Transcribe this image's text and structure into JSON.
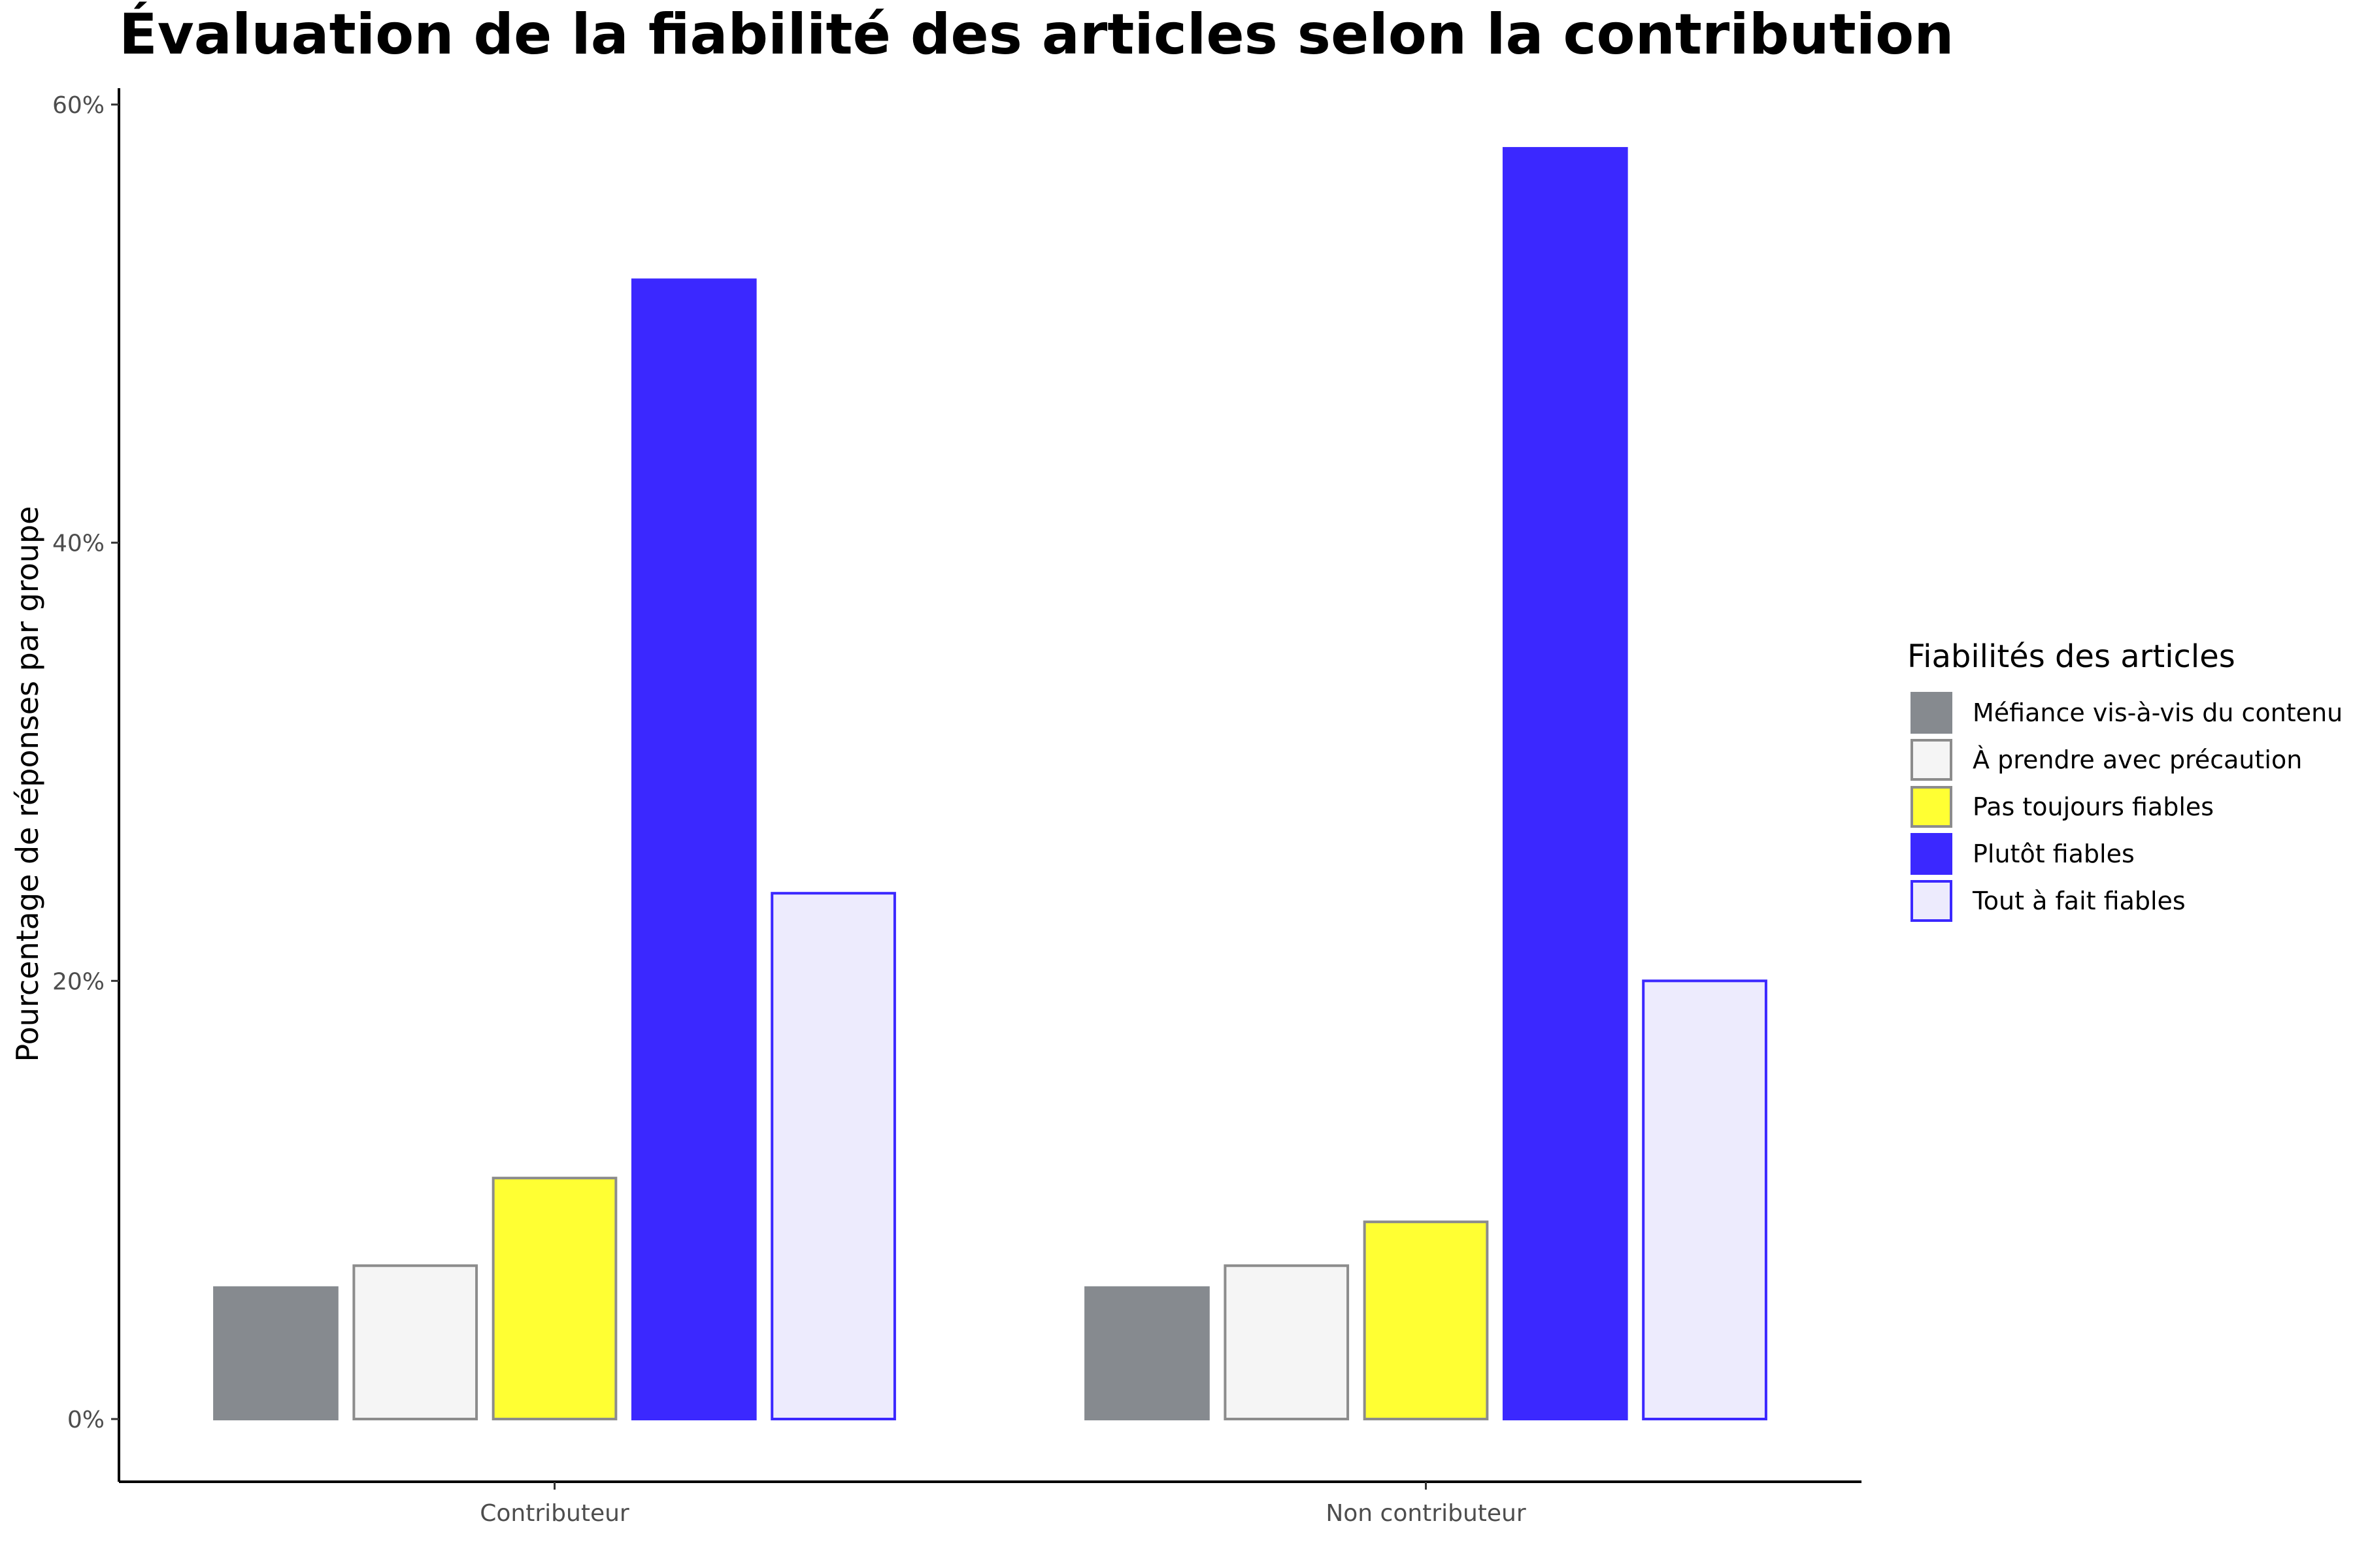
{
  "chart_data": {
    "type": "bar",
    "title": "Évaluation de la fiabilité des articles selon la contribution",
    "xlabel": "",
    "ylabel": "Pourcentage de réponses par groupe",
    "ylim": [
      0,
      60
    ],
    "y_ticks": [
      0,
      20,
      40,
      60
    ],
    "y_tick_labels": [
      "0%",
      "20%",
      "40%",
      "60%"
    ],
    "categories": [
      "Contributeur",
      "Non contributeur"
    ],
    "grid": false,
    "legend": {
      "title": "Fiabilités des articles",
      "placement": "right"
    },
    "series": [
      {
        "name": "Méfiance vis-à-vis du contenu",
        "values": [
          6,
          6
        ],
        "fill": "#868a8f",
        "stroke": "#868a8f"
      },
      {
        "name": "À prendre avec précaution",
        "values": [
          7,
          7
        ],
        "fill": "#f5f5f5",
        "stroke": "#8c8c8c"
      },
      {
        "name": "Pas toujours fiables",
        "values": [
          11,
          9
        ],
        "fill": "#ffff33",
        "stroke": "#8c8c8c"
      },
      {
        "name": "Plutôt fiables",
        "values": [
          52,
          58
        ],
        "fill": "#3b28ff",
        "stroke": "#3b28ff"
      },
      {
        "name": "Tout à fait fiables",
        "values": [
          24,
          20
        ],
        "fill": "#edebfd",
        "stroke": "#3b28ff"
      }
    ]
  }
}
